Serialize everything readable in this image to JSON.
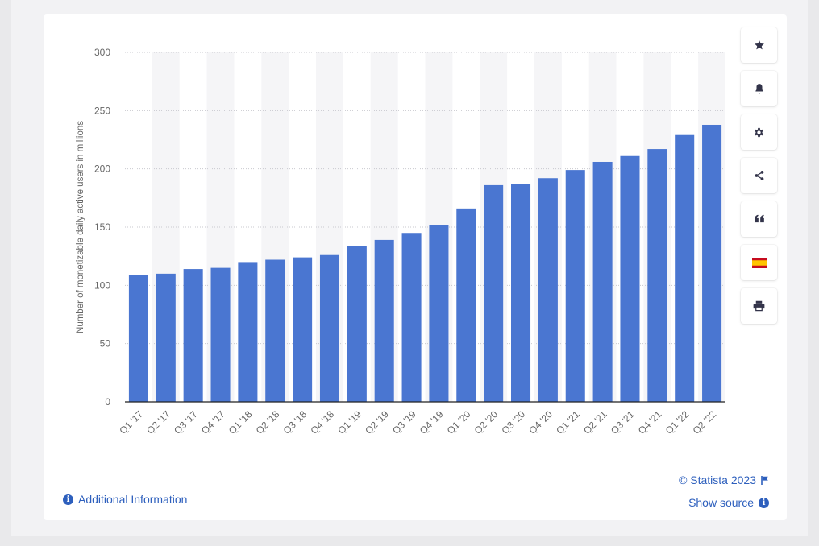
{
  "chart_data": {
    "type": "bar",
    "title": "",
    "xlabel": "",
    "ylabel": "Number of monetizable daily active users in millions",
    "categories": [
      "Q1 '17",
      "Q2 '17",
      "Q3 '17",
      "Q4 '17",
      "Q1 '18",
      "Q2 '18",
      "Q3 '18",
      "Q4 '18",
      "Q1 '19",
      "Q2 '19",
      "Q3 '19",
      "Q4 '19",
      "Q1 '20",
      "Q2 '20",
      "Q3 '20",
      "Q4 '20",
      "Q1 '21",
      "Q2 '21",
      "Q3 '21",
      "Q4 '21",
      "Q1 '22",
      "Q2 '22"
    ],
    "values": [
      109,
      110,
      114,
      115,
      120,
      122,
      124,
      126,
      134,
      139,
      145,
      152,
      166,
      186,
      187,
      192,
      199,
      206,
      211,
      217,
      229,
      237.8
    ],
    "ylim": [
      0,
      300
    ],
    "yticks": [
      0,
      50,
      100,
      150,
      200,
      250,
      300
    ],
    "grid": true,
    "bar_color": "#4a76d1"
  },
  "toolbar": {
    "icons": [
      "star-icon",
      "bell-icon",
      "gear-icon",
      "share-icon",
      "quote-icon",
      "flag-spain-icon",
      "printer-icon"
    ]
  },
  "footer": {
    "additional_info": "Additional Information",
    "copyright": "© Statista 2023",
    "show_source": "Show source"
  },
  "colors": {
    "accent": "#2d5fbd",
    "bar": "#4a76d1"
  }
}
